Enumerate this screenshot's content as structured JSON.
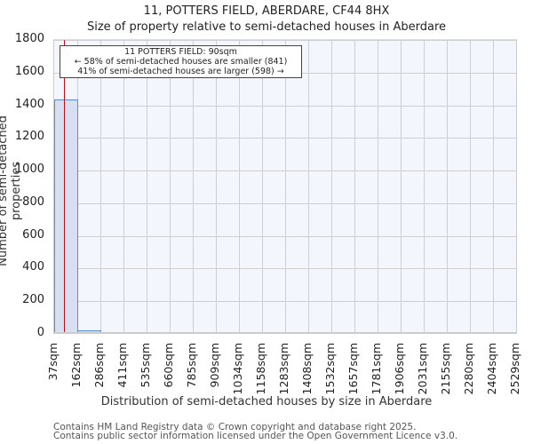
{
  "header": {
    "title": "11, POTTERS FIELD, ABERDARE, CF44 8HX",
    "subtitle": "Size of property relative to semi-detached houses in Aberdare"
  },
  "annotation": {
    "line1": "11 POTTERS FIELD: 90sqm",
    "line2": "← 58% of semi-detached houses are smaller (841)",
    "line3": "41% of semi-detached houses are larger (598) →"
  },
  "axes": {
    "ylabel": "Number of semi-detached properties",
    "xlabel": "Distribution of semi-detached houses by size in Aberdare",
    "yticks": [
      "0",
      "200",
      "400",
      "600",
      "800",
      "1000",
      "1200",
      "1400",
      "1600",
      "1800"
    ],
    "xticks": [
      "37sqm",
      "162sqm",
      "286sqm",
      "411sqm",
      "535sqm",
      "660sqm",
      "785sqm",
      "909sqm",
      "1034sqm",
      "1158sqm",
      "1283sqm",
      "1408sqm",
      "1532sqm",
      "1657sqm",
      "1781sqm",
      "1906sqm",
      "2031sqm",
      "2155sqm",
      "2280sqm",
      "2404sqm",
      "2529sqm"
    ]
  },
  "footer": {
    "line1": "Contains HM Land Registry data © Crown copyright and database right 2025.",
    "line2": "Contains public sector information licensed under the Open Government Licence v3.0."
  },
  "colors": {
    "bar_fill": "#d6e0f2",
    "bar_edge": "#5b8bd0",
    "marker": "#c0101a",
    "plot_bg": "#f3f6fd"
  },
  "chart_data": {
    "type": "bar",
    "title": "11, POTTERS FIELD, ABERDARE, CF44 8HX",
    "subtitle": "Size of property relative to semi-detached houses in Aberdare",
    "xlabel": "Distribution of semi-detached houses by size in Aberdare",
    "ylabel": "Number of semi-detached properties",
    "categories": [
      "37sqm",
      "162sqm",
      "286sqm",
      "411sqm",
      "535sqm",
      "660sqm",
      "785sqm",
      "909sqm",
      "1034sqm",
      "1158sqm",
      "1283sqm",
      "1408sqm",
      "1532sqm",
      "1657sqm",
      "1781sqm",
      "1906sqm",
      "2031sqm",
      "2155sqm",
      "2280sqm",
      "2404sqm"
    ],
    "bin_edges": [
      37,
      162,
      286,
      411,
      535,
      660,
      785,
      909,
      1034,
      1158,
      1283,
      1408,
      1532,
      1657,
      1781,
      1906,
      2031,
      2155,
      2280,
      2404,
      2529
    ],
    "values": [
      1436,
      20,
      0,
      0,
      0,
      0,
      0,
      0,
      0,
      0,
      0,
      0,
      0,
      0,
      0,
      0,
      0,
      0,
      0,
      0
    ],
    "ylim": [
      0,
      1800
    ],
    "yticks": [
      0,
      200,
      400,
      600,
      800,
      1000,
      1200,
      1400,
      1600,
      1800
    ],
    "grid": true,
    "marker": {
      "x": 90,
      "label": "11 POTTERS FIELD: 90sqm"
    },
    "annotations": [
      "11 POTTERS FIELD: 90sqm",
      "← 58% of semi-detached houses are smaller (841)",
      "41% of semi-detached houses are larger (598) →"
    ]
  }
}
